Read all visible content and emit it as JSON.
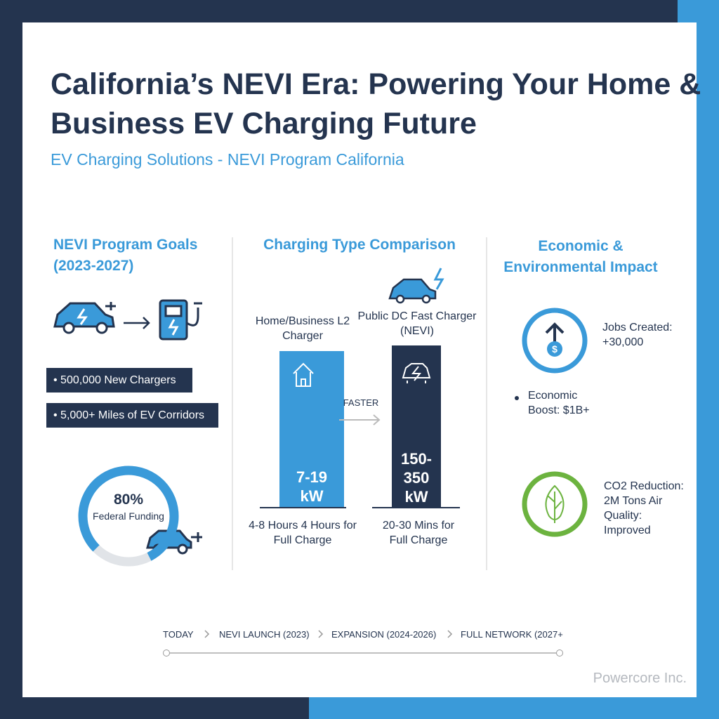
{
  "header": {
    "title": "California’s NEVI Era: Powering Your Home & Business EV Charging Future",
    "subtitle": "EV Charging Solutions - NEVI Program California"
  },
  "goals": {
    "heading": "NEVI Program Goals (2023-2027)",
    "items": [
      "500,000 New Chargers",
      "5,000+ Miles of EV Corridors"
    ],
    "gauge": {
      "value": 80,
      "label": "80%",
      "lim": [
        0,
        100
      ],
      "caption": "Federal Funding"
    }
  },
  "comparison": {
    "heading": "Charging Type Comparison",
    "arrow_label": "FASTER",
    "chargers": [
      {
        "name": "Home/Business L2 Charger",
        "power": "7-19 kW",
        "time": "4-8 Hours 4 Hours for Full Charge"
      },
      {
        "name": "Public DC Fast Charger (NEVI)",
        "power": "150-350 kW",
        "time": "20-30 Mins for Full Charge"
      }
    ]
  },
  "impact": {
    "heading": "Economic & Environmental Impact",
    "stats": [
      "Jobs Created: +30,000",
      "Economic Boost: $1B+",
      "CO2 Reduction: 2M Tons Air Quality: Improved"
    ]
  },
  "timeline": [
    "TODAY",
    "NEVI LAUNCH (2023)",
    "EXPANSION (2024-2026)",
    "FULL NETWORK (2027+"
  ],
  "footer": "Powercore Inc."
}
